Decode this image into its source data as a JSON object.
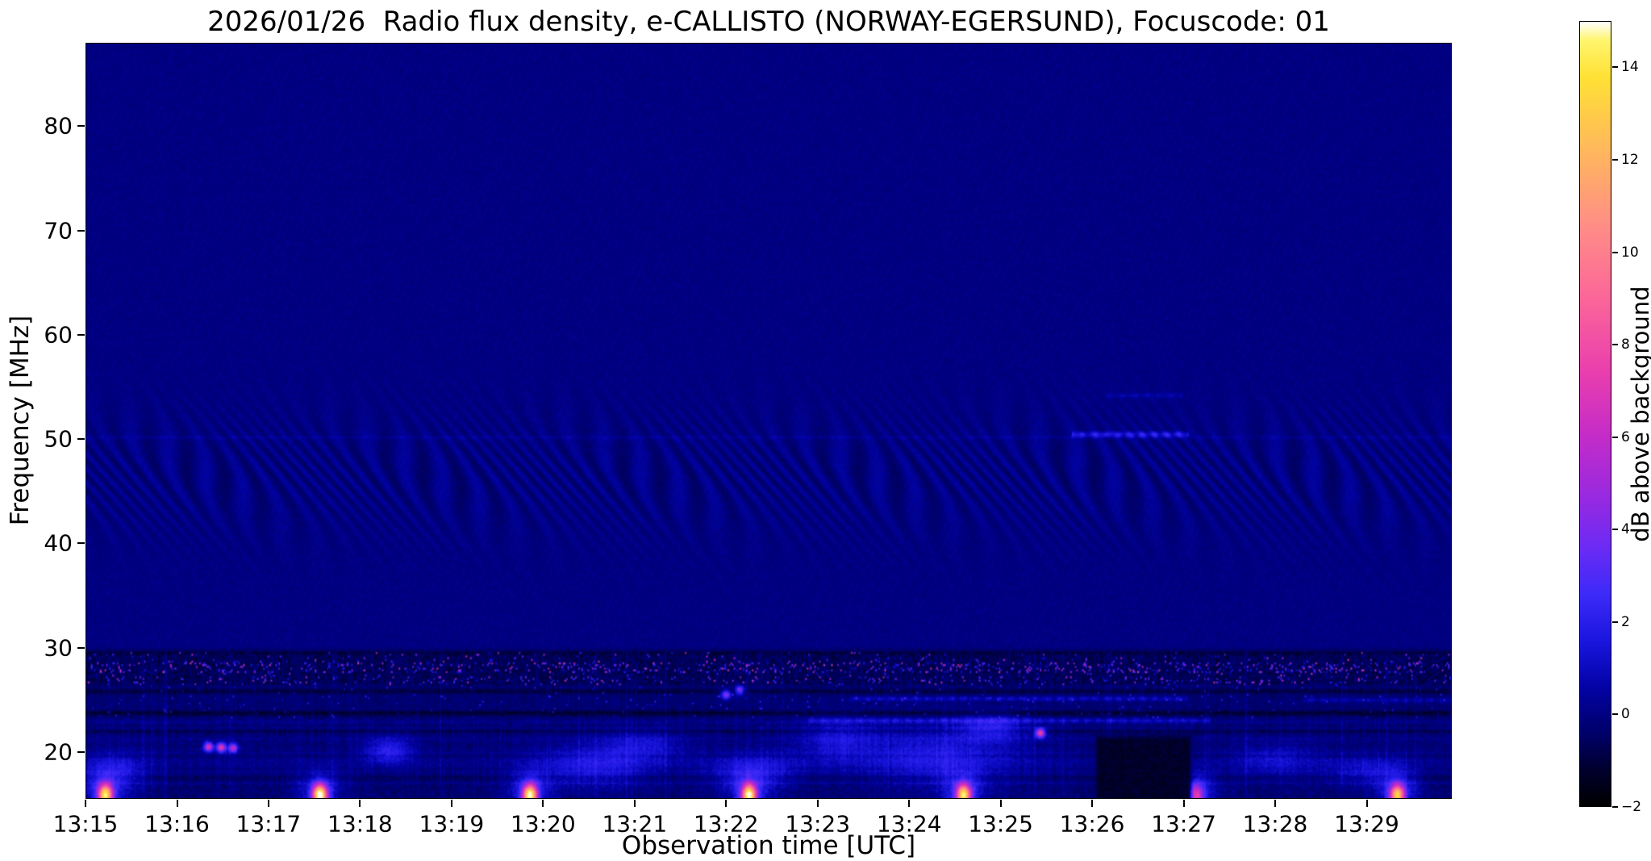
{
  "chart_data": {
    "type": "heatmap",
    "title": "2026/01/26  Radio flux density, e-CALLISTO (NORWAY-EGERSUND), Focuscode: 01",
    "xlabel": "Observation time [UTC]",
    "ylabel": "Frequency [MHz]",
    "date": "2026/01/26",
    "station": "NORWAY-EGERSUND",
    "focuscode": "01",
    "x_ticks": [
      "13:15",
      "13:16",
      "13:17",
      "13:18",
      "13:19",
      "13:20",
      "13:21",
      "13:22",
      "13:23",
      "13:24",
      "13:25",
      "13:26",
      "13:27",
      "13:28",
      "13:29"
    ],
    "x_range_minutes": [
      0,
      14.93
    ],
    "x_start": "13:15",
    "y_ticks": [
      20,
      30,
      40,
      50,
      60,
      70,
      80
    ],
    "y_range_mhz": [
      15.5,
      88
    ],
    "grid": false,
    "background_level_db": 0,
    "colorbar": {
      "label": "dB above background",
      "range": [
        -2,
        15
      ],
      "ticks": [
        {
          "value": 14,
          "label": "14"
        },
        {
          "value": 12,
          "label": "12"
        },
        {
          "value": 10,
          "label": "10"
        },
        {
          "value": 8,
          "label": "8"
        },
        {
          "value": 6,
          "label": "6"
        },
        {
          "value": 4,
          "label": "4"
        },
        {
          "value": 2,
          "label": "2"
        },
        {
          "value": 0,
          "label": "0"
        },
        {
          "value": -2,
          "label": "−2"
        }
      ],
      "colormap_stops": [
        [
          -2.0,
          "#000000"
        ],
        [
          -1.2,
          "#00002e"
        ],
        [
          -0.4,
          "#00006b"
        ],
        [
          0.6,
          "#0303a6"
        ],
        [
          1.6,
          "#1b16e0"
        ],
        [
          2.6,
          "#3d2af8"
        ],
        [
          3.6,
          "#6b2bf4"
        ],
        [
          4.6,
          "#9429e2"
        ],
        [
          6.0,
          "#c32cc8"
        ],
        [
          7.4,
          "#e93eae"
        ],
        [
          9.0,
          "#fb6699"
        ],
        [
          10.6,
          "#ff8e86"
        ],
        [
          12.2,
          "#ffb75c"
        ],
        [
          13.8,
          "#ffe135"
        ],
        [
          14.6,
          "#fff56e"
        ],
        [
          15.0,
          "#ffffff"
        ]
      ]
    },
    "features": {
      "quiet_upper_band": {
        "f1": 30,
        "f2": 88,
        "level_db": 0
      },
      "ripple_band": {
        "f1": 39,
        "f2": 52,
        "center_f": 46.5,
        "amplitude_db": 0.5,
        "desc": "wavy ionospheric interference ripples"
      },
      "rfi_band": {
        "f1": 26.4,
        "f2": 29.4,
        "speckle_max_db": 9,
        "desc": "dense RFI speckle band on dark background"
      },
      "dark_rows": [
        {
          "f": 23.6,
          "depth": 0.9
        },
        {
          "f": 25.7,
          "depth": 0.7
        },
        {
          "f": 29.55,
          "depth": 0.6
        },
        {
          "f": 21.9,
          "depth": 0.5
        },
        {
          "f": 17.4,
          "depth": 0.45
        }
      ],
      "burst_f": 15.7,
      "bursts": [
        {
          "t": 0.2,
          "peak_db": 13
        },
        {
          "t": 2.55,
          "peak_db": 15
        },
        {
          "t": 4.85,
          "peak_db": 14
        },
        {
          "t": 7.25,
          "peak_db": 14
        },
        {
          "t": 9.6,
          "peak_db": 13
        },
        {
          "t": 12.15,
          "peak_db": 6
        },
        {
          "t": 14.35,
          "peak_db": 12
        }
      ],
      "dots": [
        {
          "t": 1.33,
          "f": 20.35,
          "db": 7
        },
        {
          "t": 1.47,
          "f": 20.3,
          "db": 7.5
        },
        {
          "t": 1.6,
          "f": 20.25,
          "db": 6
        },
        {
          "t": 10.44,
          "f": 21.7,
          "db": 8
        },
        {
          "t": 7.0,
          "f": 25.4,
          "db": 5
        },
        {
          "t": 7.15,
          "f": 25.8,
          "db": 4.5
        }
      ],
      "blobs": [
        {
          "t": 0.3,
          "f": 18.0,
          "st": 0.25,
          "sf": 1.2,
          "db": 1.6
        },
        {
          "t": 3.3,
          "f": 20.0,
          "st": 0.18,
          "sf": 0.9,
          "db": 2.2
        },
        {
          "t": 5.55,
          "f": 18.5,
          "st": 0.45,
          "sf": 1.5,
          "db": 1.8
        },
        {
          "t": 6.1,
          "f": 20.5,
          "st": 0.3,
          "sf": 1.0,
          "db": 1.4
        },
        {
          "t": 7.3,
          "f": 18.0,
          "st": 0.35,
          "sf": 1.2,
          "db": 1.6
        },
        {
          "t": 8.2,
          "f": 21.0,
          "st": 0.3,
          "sf": 1.5,
          "db": 1.5
        },
        {
          "t": 9.3,
          "f": 19.5,
          "st": 0.6,
          "sf": 2.0,
          "db": 1.8
        },
        {
          "t": 9.9,
          "f": 22.2,
          "st": 0.25,
          "sf": 0.9,
          "db": 1.9
        },
        {
          "t": 13.0,
          "f": 19.0,
          "st": 0.3,
          "sf": 1.2,
          "db": 1.3
        },
        {
          "t": 14.0,
          "f": 18.0,
          "st": 0.3,
          "sf": 1.0,
          "db": 1.4
        }
      ],
      "segments": [
        {
          "f": 50.45,
          "t1": 10.78,
          "t2": 12.07,
          "db": 2.4,
          "sf": 0.18
        },
        {
          "f": 54.2,
          "t1": 11.15,
          "t2": 12.0,
          "db": 0.9,
          "sf": 0.15
        },
        {
          "f": 50.15,
          "t1": 0.0,
          "t2": 14.93,
          "db": 0.5,
          "sf": 0.12
        },
        {
          "f": 25.0,
          "t1": 8.35,
          "t2": 12.05,
          "db": 1.6,
          "sf": 0.15
        },
        {
          "f": 22.9,
          "t1": 7.9,
          "t2": 12.3,
          "db": 1.4,
          "sf": 0.15
        },
        {
          "f": 24.85,
          "t1": 13.3,
          "t2": 14.93,
          "db": 1.2,
          "sf": 0.15
        }
      ],
      "dark_patch": {
        "t1": 11.02,
        "t2": 12.12,
        "f_max": 21.8,
        "level_db": -1.6
      }
    }
  }
}
